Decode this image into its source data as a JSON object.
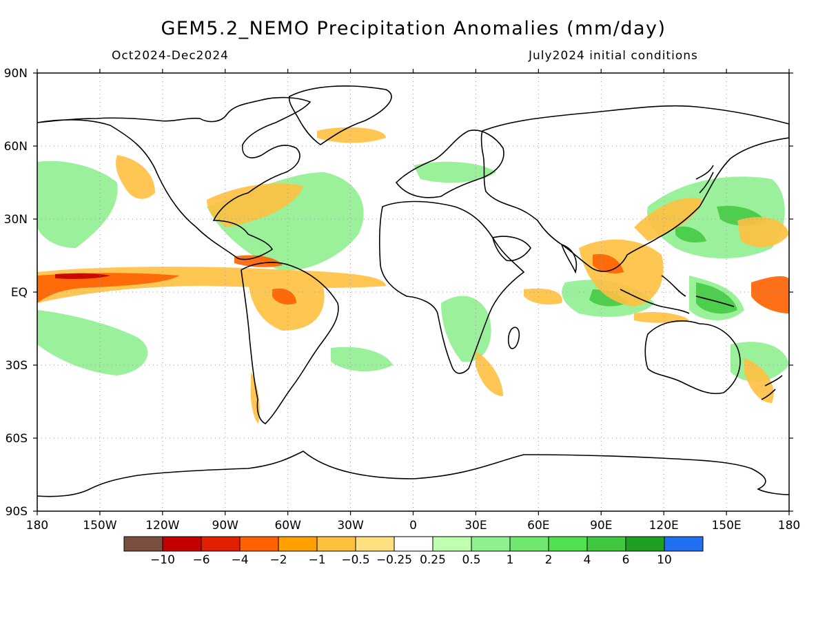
{
  "title": "GEM5.2_NEMO Precipitation Anomalies (mm/day)",
  "period": "Oct2024-Dec2024",
  "init": "July2024 initial conditions",
  "lat_labels": [
    "90N",
    "60N",
    "30N",
    "EQ",
    "30S",
    "60S",
    "90S"
  ],
  "lon_labels": [
    "180",
    "150W",
    "120W",
    "90W",
    "60W",
    "30W",
    "0",
    "30E",
    "60E",
    "90E",
    "120E",
    "150E",
    "180"
  ],
  "colorbar": {
    "colors": [
      "#7b4f3f",
      "#c40000",
      "#e02000",
      "#ff6000",
      "#ffa000",
      "#ffc040",
      "#ffe080",
      "#ffffff",
      "#c0ffb0",
      "#90f090",
      "#70e870",
      "#50e050",
      "#40c840",
      "#20a020",
      "#2070f0"
    ],
    "labels": [
      "−10",
      "−6",
      "−4",
      "−2",
      "−1",
      "−0.5",
      "−0.25",
      "0.25",
      "0.5",
      "1",
      "2",
      "4",
      "6",
      "10"
    ]
  },
  "colors": {
    "land_outline": "#000000",
    "grid": "#999999"
  }
}
